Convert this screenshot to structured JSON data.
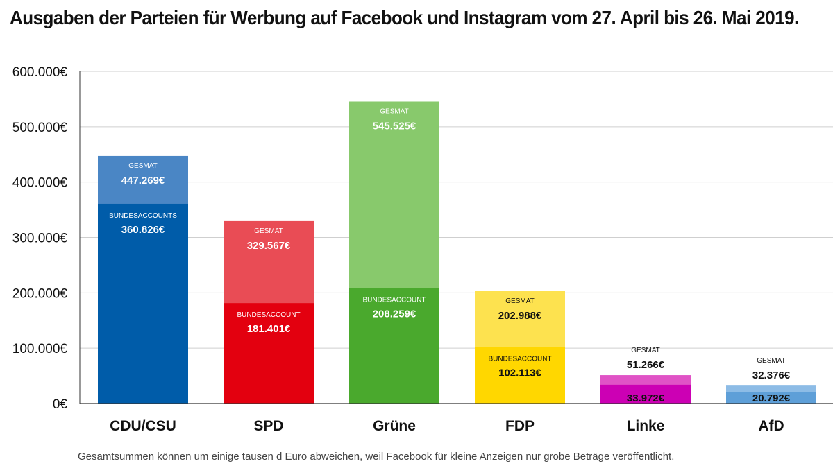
{
  "chart_data": {
    "type": "bar",
    "stacked": "overlay",
    "title": "Ausgaben der Parteien für Werbung auf Facebook und Instagram vom 27. April bis 26. Mai 2019.",
    "ylim": [
      0,
      600000
    ],
    "yticks": [
      0,
      100000,
      200000,
      300000,
      400000,
      500000,
      600000
    ],
    "ytick_labels": [
      "0€",
      "100.000€",
      "200.000€",
      "300.000€",
      "400.000€",
      "500.000€",
      "600.000€"
    ],
    "grid": true,
    "categories": [
      "CDU/CSU",
      "SPD",
      "Grüne",
      "FDP",
      "Linke",
      "AfD"
    ],
    "series": [
      {
        "name": "Gesamt",
        "values": [
          447269,
          329567,
          545525,
          202988,
          51266,
          32376
        ],
        "labels": [
          "447.269€",
          "329.567€",
          "545.525€",
          "202.988€",
          "51.266€",
          "32.376€"
        ],
        "tag_labels": [
          "GESMAT",
          "GESMAT",
          "GESMAT",
          "GESMAT",
          "GESMAT",
          "GESMAT"
        ]
      },
      {
        "name": "Bundesaccount",
        "values": [
          360826,
          181401,
          208259,
          102113,
          33972,
          20792
        ],
        "labels": [
          "360.826€",
          "181.401€",
          "208.259€",
          "102.113€",
          "33.972€",
          "20.792€"
        ],
        "tag_labels": [
          "BUNDESACCOUNTS",
          "BUNDESACCOUNT",
          "BUNDESACCOUNT",
          "BUNDESACCOUNT",
          "",
          ""
        ]
      }
    ],
    "colors": {
      "total": [
        "#4a86c5",
        "#e94c55",
        "#88c96c",
        "#fde24f",
        "#e053c6",
        "#8dbce6"
      ],
      "bundes": [
        "#005ca9",
        "#e3000f",
        "#4aa92d",
        "#ffd700",
        "#cc00b4",
        "#5e9fd8"
      ],
      "total_text": [
        "#ffffff",
        "#ffffff",
        "#ffffff",
        "#111111",
        "#111111",
        "#111111"
      ],
      "bundes_text": [
        "#ffffff",
        "#ffffff",
        "#ffffff",
        "#111111",
        "#111111",
        "#111111"
      ]
    }
  },
  "footnote": "Gesamtsummen können um einige tausen d Euro abweichen, weil Facebook für kleine Anzeigen nur grobe Beträge veröffentlicht."
}
